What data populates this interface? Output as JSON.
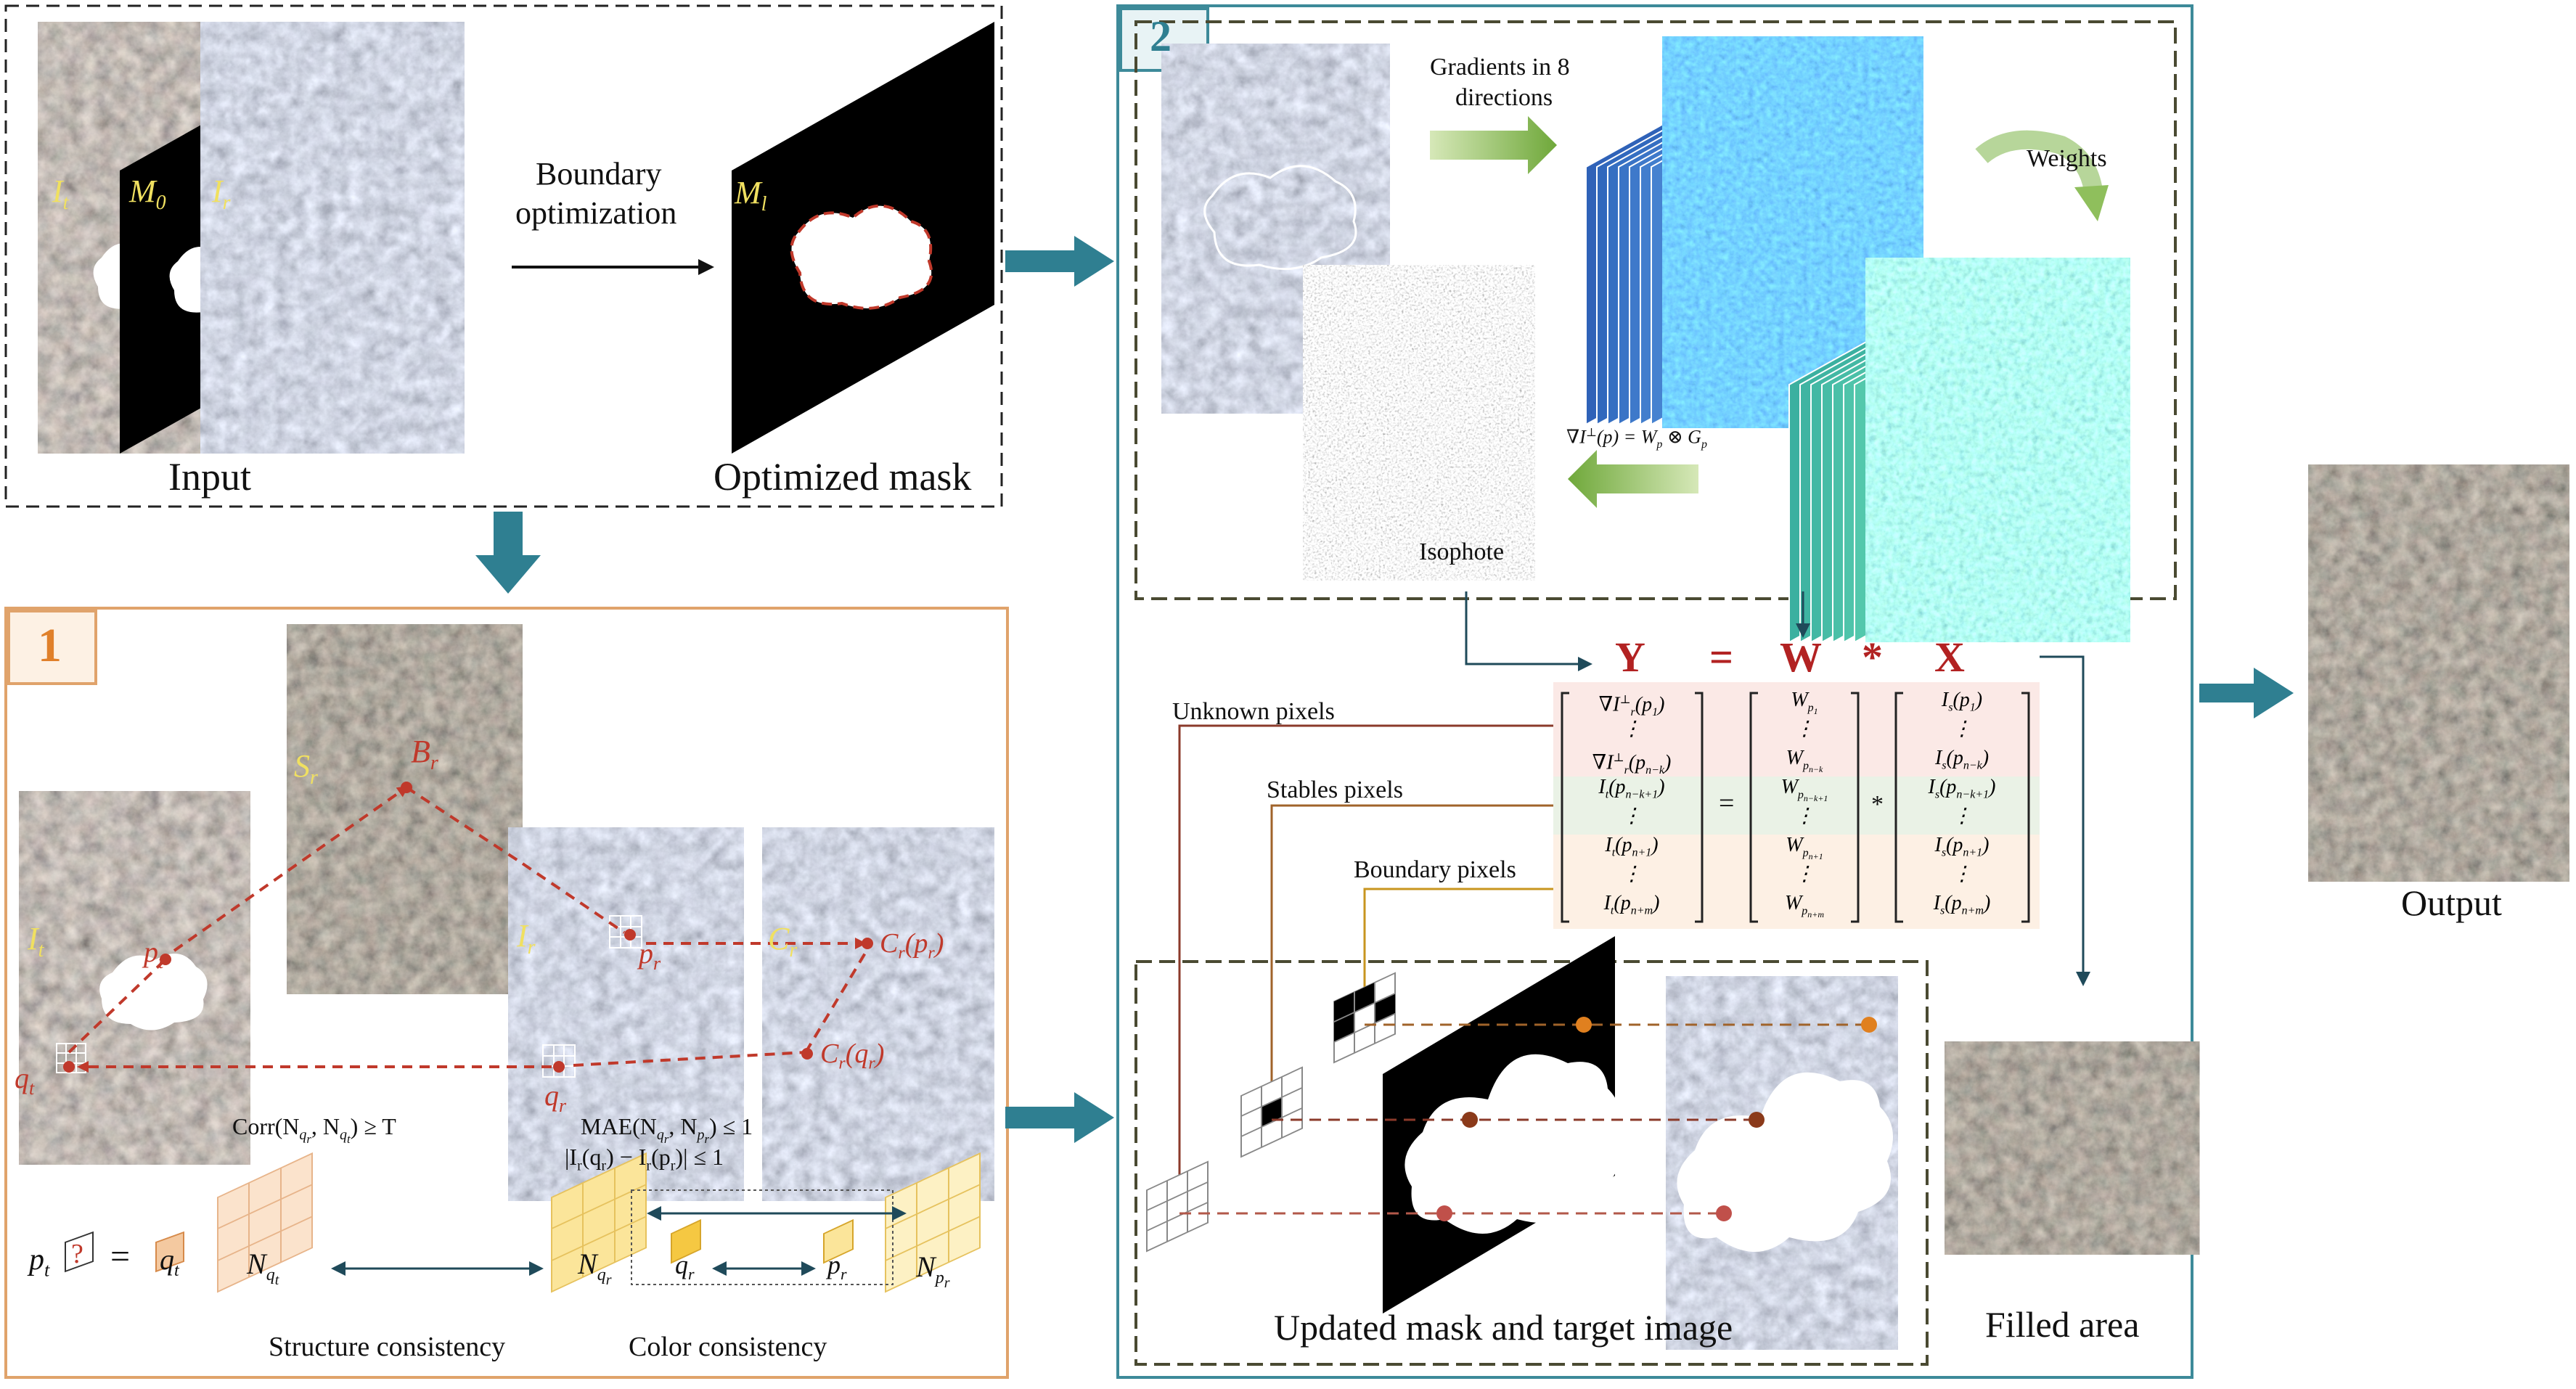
{
  "input_panel": {
    "layer_labels": [
      "I",
      "M",
      "I"
    ],
    "layer_subscripts": [
      "t",
      "0",
      "r"
    ],
    "caption": "Input",
    "arrow_label_line1": "Boundary",
    "arrow_label_line2": "optimization",
    "mask_label": "M",
    "mask_subscript": "l",
    "mask_caption": "Optimized mask"
  },
  "panel1": {
    "badge": "1",
    "labels": {
      "It": "I",
      "It_sub": "t",
      "Sr": "S",
      "Sr_sub": "r",
      "Br": "B",
      "Br_sub": "r",
      "pt": "p",
      "pt_sub": "t",
      "qt": "q",
      "qt_sub": "t",
      "Ir": "I",
      "Ir_sub": "r",
      "pr": "p",
      "pr_sub": "r",
      "qr": "q",
      "qr_sub": "r",
      "Cr": "C",
      "Cr_sub": "r",
      "Crpr": "C",
      "Crpr_sub": "r",
      "Crpr_arg": "(p",
      "Crpr_arg_sub": "r",
      "Crpr_close": ")",
      "Crqr": "C",
      "Crqr_sub": "r",
      "Crqr_arg": "(q",
      "Crqr_arg_sub": "r",
      "Crqr_close": ")"
    },
    "corr_formula": "Corr(N",
    "corr_sub1": "q",
    "corr_sub1b": "r",
    "corr_mid": ", N",
    "corr_sub2": "q",
    "corr_sub2b": "t",
    "corr_end": ") ≥ T",
    "mae_formula": "MAE(N",
    "mae_sub1": "q",
    "mae_sub1b": "r",
    "mae_mid": ", N",
    "mae_sub2": "p",
    "mae_sub2b": "r",
    "mae_end": ") ≤ 1",
    "diff_formula": "|I",
    "diff_a": "r",
    "diff_b": "(q",
    "diff_c": "r",
    "diff_d": ") − I",
    "diff_e": "r",
    "diff_f": "(p",
    "diff_g": "r",
    "diff_h": ")| ≤ 1",
    "eq_pt": "p",
    "eq_pt_sub": "t",
    "eq_q": "?",
    "eq_equals": "=",
    "eq_qt": "q",
    "eq_qt_sub": "t",
    "N_qt": "N",
    "N_qt_sub": "q",
    "N_qt_subsub": "t",
    "N_qr": "N",
    "N_qr_sub": "q",
    "N_qr_subsub": "r",
    "qr_cell": "q",
    "qr_cell_sub": "r",
    "pr_cell": "p",
    "pr_cell_sub": "r",
    "N_pr": "N",
    "N_pr_sub": "p",
    "N_pr_subsub": "r",
    "structure_caption": "Structure consistency",
    "color_caption": "Color consistency"
  },
  "panel2": {
    "badge": "2",
    "gradients_line1": "Gradients in 8",
    "gradients_line2": "directions",
    "weights": "Weights",
    "formula_lhs": "∇I",
    "formula_sup": "⊥",
    "formula_rest": "(p) = W",
    "formula_sub_p": "p",
    "formula_otimes": " ⊗ G",
    "formula_sub_p2": "p",
    "isophote": "Isophote",
    "eq_Y": "Y",
    "eq_equals": "=",
    "eq_W": "W",
    "eq_star": "*",
    "eq_X": "X",
    "unknown": "Unknown pixels",
    "stables": "Stables pixels",
    "boundary": "Boundary pixels",
    "matrix": {
      "Y": [
        {
          "base": "∇I",
          "sub": "r",
          "sup": "⊥",
          "arg": "(p",
          "argsub": "1",
          "close": ")"
        },
        {
          "base": "⋮"
        },
        {
          "base": "∇I",
          "sub": "r",
          "sup": "⊥",
          "arg": "(p",
          "argsub": "n−k",
          "close": ")"
        },
        {
          "base": "I",
          "sub": "t",
          "arg": "(p",
          "argsub": "n−k+1",
          "close": ")"
        },
        {
          "base": "⋮"
        },
        {
          "base": "I",
          "sub": "t",
          "arg": "(p",
          "argsub": "n+1",
          "close": ")"
        },
        {
          "base": "⋮"
        },
        {
          "base": "I",
          "sub": "t",
          "arg": "(p",
          "argsub": "n+m",
          "close": ")"
        }
      ],
      "W": [
        {
          "base": "W",
          "sub": "p",
          "subsub": "1"
        },
        {
          "base": "⋮"
        },
        {
          "base": "W",
          "sub": "p",
          "subsub": "n−k"
        },
        {
          "base": "W",
          "sub": "p",
          "subsub": "n−k+1"
        },
        {
          "base": "⋮"
        },
        {
          "base": "W",
          "sub": "p",
          "subsub": "n+1"
        },
        {
          "base": "⋮"
        },
        {
          "base": "W",
          "sub": "p",
          "subsub": "n+m"
        }
      ],
      "X": [
        {
          "base": "I",
          "sub": "s",
          "arg": "(p",
          "argsub": "1",
          "close": ")"
        },
        {
          "base": "⋮"
        },
        {
          "base": "I",
          "sub": "s",
          "arg": "(p",
          "argsub": "n−k",
          "close": ")"
        },
        {
          "base": "I",
          "sub": "s",
          "arg": "(p",
          "argsub": "n−k+1",
          "close": ")"
        },
        {
          "base": "⋮"
        },
        {
          "base": "I",
          "sub": "s",
          "arg": "(p",
          "argsub": "n+1",
          "close": ")"
        },
        {
          "base": "⋮"
        },
        {
          "base": "I",
          "sub": "s",
          "arg": "(p",
          "argsub": "n+m",
          "close": ")"
        }
      ],
      "mid_equals": "=",
      "mid_star": "*"
    },
    "updated_caption": "Updated mask and target image",
    "filled_caption": "Filled area"
  },
  "output": {
    "caption": "Output"
  },
  "colors": {
    "teal": "#2f7f91",
    "panel1_border": "#e0a36b",
    "panel2_border": "#3d8a99",
    "dash_olive": "#4a4a32",
    "red_dash": "#c0392b",
    "yellow_label": "#f0e060",
    "eq_red": "#b22222",
    "green_arrow": "#7fb04a",
    "unknown_line": "#8b3a2a",
    "stables_line": "#a0632a",
    "boundary_line": "#c8951f"
  }
}
